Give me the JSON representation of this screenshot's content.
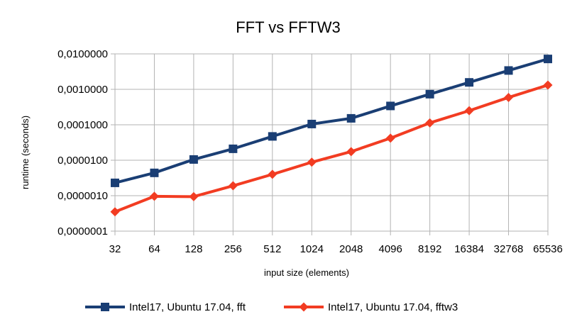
{
  "chart_data": {
    "type": "line",
    "title": "FFT vs FFTW3",
    "xlabel": "input size (elements)",
    "ylabel": "runtime (seconds)",
    "y_scale": "log",
    "ylim": [
      1e-07,
      0.01
    ],
    "y_ticks": [
      "0,0000001",
      "0,0000010",
      "0,0000100",
      "0,0001000",
      "0,0010000",
      "0,0100000"
    ],
    "categories": [
      "32",
      "64",
      "128",
      "256",
      "512",
      "1024",
      "2048",
      "4096",
      "8192",
      "16384",
      "32768",
      "65536"
    ],
    "grid": true,
    "legend_position": "bottom",
    "series": [
      {
        "name": "Intel17, Ubuntu 17.04, fft",
        "color": "#1a3e74",
        "marker": "square",
        "values": [
          2.3e-06,
          4.4e-06,
          1.05e-05,
          2.1e-05,
          4.7e-05,
          0.000105,
          0.000152,
          0.00034,
          0.00073,
          0.00157,
          0.0034,
          0.0072
        ]
      },
      {
        "name": "Intel17, Ubuntu 17.04, fftw3",
        "color": "#f23c22",
        "marker": "diamond",
        "values": [
          3.5e-07,
          9.6e-07,
          9.4e-07,
          1.9e-06,
          4e-06,
          8.8e-06,
          1.75e-05,
          4.2e-05,
          0.000113,
          0.00025,
          0.00059,
          0.00132
        ]
      }
    ]
  }
}
